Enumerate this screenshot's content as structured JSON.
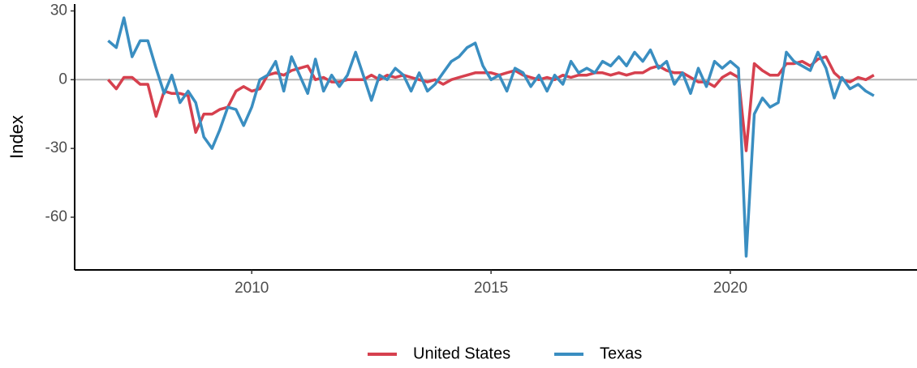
{
  "chart_data": {
    "type": "line",
    "y_label": "Index",
    "x": [
      2007,
      2007.17,
      2007.33,
      2007.5,
      2007.67,
      2007.83,
      2008,
      2008.17,
      2008.33,
      2008.5,
      2008.67,
      2008.83,
      2009,
      2009.17,
      2009.33,
      2009.5,
      2009.67,
      2009.83,
      2010,
      2010.17,
      2010.33,
      2010.5,
      2010.67,
      2010.83,
      2011,
      2011.17,
      2011.33,
      2011.5,
      2011.67,
      2011.83,
      2012,
      2012.17,
      2012.33,
      2012.5,
      2012.67,
      2012.83,
      2013,
      2013.17,
      2013.33,
      2013.5,
      2013.67,
      2013.83,
      2014,
      2014.17,
      2014.33,
      2014.5,
      2014.67,
      2014.83,
      2015,
      2015.17,
      2015.33,
      2015.5,
      2015.67,
      2015.83,
      2016,
      2016.17,
      2016.33,
      2016.5,
      2016.67,
      2016.83,
      2017,
      2017.17,
      2017.33,
      2017.5,
      2017.67,
      2017.83,
      2018,
      2018.17,
      2018.33,
      2018.5,
      2018.67,
      2018.83,
      2019,
      2019.17,
      2019.33,
      2019.5,
      2019.67,
      2019.83,
      2020,
      2020.17,
      2020.33,
      2020.5,
      2020.67,
      2020.83,
      2021,
      2021.17,
      2021.33,
      2021.5,
      2021.67,
      2021.83,
      2022,
      2022.17,
      2022.33,
      2022.5,
      2022.67,
      2022.83,
      2023
    ],
    "series": [
      {
        "name": "United States",
        "color": "#d6404e",
        "values": [
          0,
          -4,
          1,
          1,
          -2,
          -2,
          -16,
          -5,
          -6,
          -6,
          -7,
          -23,
          -15,
          -15,
          -13,
          -12,
          -5,
          -3,
          -5,
          -4,
          2,
          3,
          2,
          4,
          5,
          6,
          0,
          1,
          -1,
          -1,
          0,
          0,
          0,
          2,
          0,
          2,
          1,
          2,
          1,
          0,
          -1,
          0,
          -2,
          0,
          1,
          2,
          3,
          3,
          3,
          2,
          3,
          4,
          2,
          1,
          0,
          1,
          0,
          2,
          1,
          2,
          2,
          3,
          3,
          2,
          3,
          2,
          3,
          3,
          5,
          6,
          4,
          3,
          3,
          1,
          -1,
          -1,
          -3,
          1,
          3,
          1,
          -31,
          7,
          4,
          2,
          2,
          7,
          7,
          8,
          6,
          9,
          10,
          3,
          0,
          -1,
          1,
          0,
          2
        ]
      },
      {
        "name": "Texas",
        "color": "#3a8ec1",
        "values": [
          17,
          14,
          27,
          10,
          17,
          17,
          5,
          -6,
          2,
          -10,
          -5,
          -10,
          -25,
          -30,
          -22,
          -12,
          -13,
          -20,
          -12,
          0,
          2,
          8,
          -5,
          10,
          2,
          -6,
          9,
          -5,
          2,
          -3,
          2,
          12,
          2,
          -9,
          2,
          0,
          5,
          2,
          -5,
          3,
          -5,
          -2,
          3,
          8,
          10,
          14,
          16,
          6,
          0,
          2,
          -5,
          5,
          3,
          -3,
          2,
          -5,
          2,
          -2,
          8,
          3,
          5,
          3,
          8,
          6,
          10,
          6,
          12,
          8,
          13,
          5,
          8,
          -2,
          3,
          -6,
          5,
          -3,
          8,
          5,
          8,
          5,
          -77,
          -15,
          -8,
          -12,
          -10,
          12,
          8,
          6,
          4,
          12,
          5,
          -8,
          1,
          -4,
          -2,
          -5,
          -7
        ]
      }
    ],
    "xlim": [
      2006.3,
      2023.9
    ],
    "ylim": [
      -83,
      33
    ],
    "xticks": [
      2010,
      2015,
      2020
    ],
    "yticks": [
      -60,
      -30,
      0,
      30
    ],
    "hline": 0,
    "legend": "bottom"
  }
}
